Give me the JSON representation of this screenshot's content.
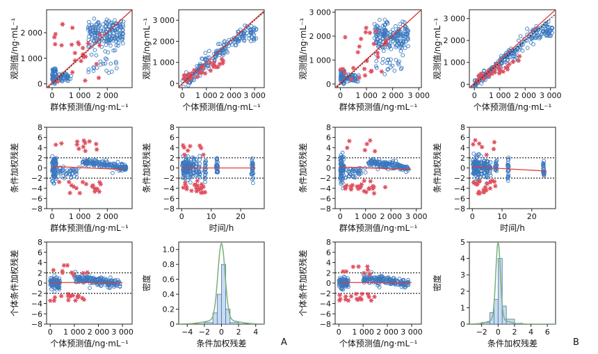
{
  "figure": {
    "panel_labels": [
      "A",
      "B"
    ]
  },
  "colors": {
    "observed_open": "#3a78bf",
    "star": "#e05060",
    "fit_line": "#e23a3a",
    "identity_line": "#222222",
    "hist_fill": "#c7dcf1",
    "density_curve": "#7fb27f"
  },
  "chart_data": [
    {
      "id": "A1",
      "type": "scatter",
      "xlabel": "群体预测值/ng·mL⁻¹",
      "ylabel": "观测值/ng·mL⁻¹",
      "xlim": [
        -200,
        2900
      ],
      "ylim": [
        -150,
        2900
      ],
      "xticks": [
        0,
        1000,
        2000
      ],
      "xticklabels": [
        "0",
        "1 000",
        "2 000"
      ],
      "yticks": [
        0,
        1000,
        2000
      ],
      "yticklabels": [
        "0",
        "1 000",
        "2 000"
      ],
      "identity": true,
      "fitline": [
        [
          -200,
          -150
        ],
        [
          2900,
          2900
        ]
      ],
      "cloud": "pkpred"
    },
    {
      "id": "A2",
      "type": "scatter",
      "xlabel": "个体预测值/ng·mL⁻¹",
      "ylabel": "观测值/ng·mL⁻¹",
      "xlim": [
        -150,
        3400
      ],
      "ylim": [
        -200,
        3500
      ],
      "xticks": [
        0,
        1000,
        2000,
        3000
      ],
      "xticklabels": [
        "0",
        "1 000",
        "2 000",
        "3 000"
      ],
      "yticks": [
        0,
        1000,
        2000,
        3000
      ],
      "yticklabels": [
        "0",
        "1 000",
        "2 000",
        "3 000"
      ],
      "identity": true,
      "fitline": [
        [
          -150,
          -180
        ],
        [
          3400,
          3450
        ]
      ],
      "cloud": "ipred"
    },
    {
      "id": "A3",
      "type": "scatter",
      "xlabel": "群体预测值/ng·mL⁻¹",
      "ylabel": "条件加权残差",
      "xlim": [
        -200,
        2900
      ],
      "ylim": [
        -8,
        8
      ],
      "xticks": [
        0,
        1000,
        2000
      ],
      "xticklabels": [
        "0",
        "1 000",
        "2 000"
      ],
      "yticks": [
        -8,
        -6,
        -4,
        -2,
        0,
        2,
        4,
        6,
        8
      ],
      "yticklabels": [
        "−8",
        "−6",
        "−4",
        "−2",
        "0",
        "2",
        "4",
        "6",
        "8"
      ],
      "reflines": [
        2,
        -2
      ],
      "fitline": [
        [
          0,
          0.3
        ],
        [
          2600,
          -0.3
        ]
      ],
      "cloud": "cwres_pred"
    },
    {
      "id": "A4",
      "type": "scatter",
      "xlabel": "时间/h",
      "ylabel": "条件加权残差",
      "xlim": [
        -1,
        28
      ],
      "ylim": [
        -8,
        8
      ],
      "xticks": [
        0,
        10,
        20
      ],
      "xticklabels": [
        "0",
        "10",
        "20"
      ],
      "yticks": [
        -8,
        -6,
        -4,
        -2,
        0,
        2,
        4,
        6,
        8
      ],
      "yticklabels": [
        "−8",
        "−6",
        "−4",
        "−2",
        "0",
        "2",
        "4",
        "6",
        "8"
      ],
      "reflines": [
        2,
        -2
      ],
      "fitline": [
        [
          0,
          0
        ],
        [
          25,
          0
        ]
      ],
      "cloud": "cwres_time"
    },
    {
      "id": "A5",
      "type": "scatter",
      "xlabel": "个体预测值/ng·mL⁻¹",
      "ylabel": "个体条件加权残差",
      "xlim": [
        -150,
        3400
      ],
      "ylim": [
        -8,
        8
      ],
      "xticks": [
        0,
        1000,
        2000,
        3000
      ],
      "xticklabels": [
        "0",
        "1 000",
        "2 000",
        "3 000"
      ],
      "yticks": [
        -8,
        -6,
        -4,
        -2,
        0,
        2,
        4,
        6,
        8
      ],
      "yticklabels": [
        "−8",
        "−6",
        "−4",
        "−2",
        "0",
        "2",
        "4",
        "6",
        "8"
      ],
      "reflines": [
        2,
        -2
      ],
      "fitline": [
        [
          0,
          0.1
        ],
        [
          3000,
          0.1
        ]
      ],
      "cloud": "iwres"
    },
    {
      "id": "A6",
      "type": "histogram",
      "xlabel": "条件加权残差",
      "ylabel": "密度",
      "xlim": [
        -5,
        5
      ],
      "ylim": [
        0,
        1.1
      ],
      "xticks": [
        -4,
        -2,
        0,
        2,
        4
      ],
      "xticklabels": [
        "−4",
        "−2",
        "0",
        "2",
        "4"
      ],
      "yticks": [
        0,
        0.2,
        0.4,
        0.6,
        0.8,
        1.0
      ],
      "yticklabels": [
        "0",
        "0.2",
        "0.4",
        "0.6",
        "0.8",
        "1.0"
      ],
      "bins": [
        [
          -2,
          -1,
          0.02
        ],
        [
          -1,
          -0.5,
          0.15
        ],
        [
          -0.5,
          0,
          0.4
        ],
        [
          0,
          0.5,
          0.8
        ],
        [
          0.5,
          1,
          0.2
        ],
        [
          1,
          2,
          0.02
        ]
      ],
      "density_peak": 1.02,
      "density_center": 0.0,
      "density_sigma": 0.42
    },
    {
      "id": "B1",
      "type": "scatter",
      "xlabel": "群体预测值/ng·mL⁻¹",
      "ylabel": "观测值/ng·mL⁻¹",
      "xlim": [
        -200,
        3100
      ],
      "ylim": [
        -150,
        3100
      ],
      "xticks": [
        0,
        1000,
        2000,
        3000
      ],
      "xticklabels": [
        "0",
        "1 000",
        "2 000",
        "3 000"
      ],
      "yticks": [
        0,
        1000,
        2000,
        3000
      ],
      "yticklabels": [
        "0",
        "1 000",
        "2 000",
        "3 000"
      ],
      "identity": true,
      "fitline": [
        [
          -200,
          -150
        ],
        [
          3100,
          3100
        ]
      ],
      "cloud": "pkpred"
    },
    {
      "id": "B2",
      "type": "scatter",
      "xlabel": "个体预测值/ng·mL⁻¹",
      "ylabel": "观测值/ng·mL⁻¹",
      "xlim": [
        -200,
        3200
      ],
      "ylim": [
        -150,
        3400
      ],
      "xticks": [
        0,
        1000,
        2000,
        3000
      ],
      "xticklabels": [
        "0",
        "1 000",
        "2 000",
        "3 000"
      ],
      "yticks": [
        0,
        1000,
        2000,
        3000
      ],
      "yticklabels": [
        "0",
        "1 000",
        "2 000",
        "3 000"
      ],
      "identity": true,
      "fitline": [
        [
          -200,
          -150
        ],
        [
          3200,
          3400
        ]
      ],
      "cloud": "ipred"
    },
    {
      "id": "B3",
      "type": "scatter",
      "xlabel": "群体预测值/ng·mL⁻¹",
      "ylabel": "条件加权残差",
      "xlim": [
        -200,
        3200
      ],
      "ylim": [
        -8,
        8
      ],
      "xticks": [
        0,
        1000,
        2000,
        3000
      ],
      "xticklabels": [
        "0",
        "1 000",
        "2 000",
        "3 000"
      ],
      "yticks": [
        -8,
        -6,
        -4,
        -2,
        0,
        2,
        4,
        6,
        8
      ],
      "yticklabels": [
        "−8",
        "−6",
        "−4",
        "−2",
        "0",
        "2",
        "4",
        "6",
        "8"
      ],
      "reflines": [
        2,
        -2
      ],
      "fitline": [
        [
          0,
          0.2
        ],
        [
          2800,
          -0.3
        ]
      ],
      "cloud": "cwres_pred"
    },
    {
      "id": "B4",
      "type": "scatter",
      "xlabel": "时间/h",
      "ylabel": "条件加权残差",
      "xlim": [
        -1,
        28
      ],
      "ylim": [
        -8,
        8
      ],
      "xticks": [
        0,
        10,
        20
      ],
      "xticklabels": [
        "0",
        "10",
        "20"
      ],
      "yticks": [
        -8,
        -6,
        -4,
        -2,
        0,
        2,
        4,
        6,
        8
      ],
      "yticklabels": [
        "−8",
        "−6",
        "−4",
        "−2",
        "0",
        "2",
        "4",
        "6",
        "8"
      ],
      "reflines": [
        2,
        -2
      ],
      "fitline": [
        [
          0,
          0.2
        ],
        [
          25,
          -0.6
        ]
      ],
      "cloud": "cwres_time"
    },
    {
      "id": "B5",
      "type": "scatter",
      "xlabel": "个体预测值/ng·mL⁻¹",
      "ylabel": "个体条件加权残差",
      "xlim": [
        -150,
        3400
      ],
      "ylim": [
        -8,
        8
      ],
      "xticks": [
        0,
        1000,
        2000,
        3000
      ],
      "xticklabels": [
        "0",
        "1 000",
        "2 000",
        "3 000"
      ],
      "yticks": [
        -8,
        -6,
        -4,
        -2,
        0,
        2,
        4,
        6,
        8
      ],
      "yticklabels": [
        "−8",
        "−6",
        "−4",
        "−2",
        "0",
        "2",
        "4",
        "6",
        "8"
      ],
      "reflines": [
        2,
        -2
      ],
      "fitline": [
        [
          0,
          0.1
        ],
        [
          3000,
          0.1
        ]
      ],
      "cloud": "iwres"
    },
    {
      "id": "B6",
      "type": "histogram",
      "xlabel": "条件加权残差",
      "ylabel": "密度",
      "xlim": [
        -3.5,
        7
      ],
      "ylim": [
        0,
        5
      ],
      "xticks": [
        -2,
        0,
        2,
        4,
        6
      ],
      "xticklabels": [
        "−2",
        "0",
        "2",
        "4",
        "6"
      ],
      "yticks": [
        0,
        1,
        2,
        3,
        4,
        5
      ],
      "yticklabels": [
        "0",
        "1",
        "2",
        "3",
        "4",
        "5"
      ],
      "bins": [
        [
          -2,
          -1,
          0.1
        ],
        [
          -1,
          -0.5,
          0.7
        ],
        [
          -0.5,
          0,
          1.5
        ],
        [
          0,
          0.5,
          4.0
        ],
        [
          0.5,
          1,
          1.1
        ],
        [
          1,
          2,
          0.3
        ],
        [
          2,
          3,
          0.05
        ]
      ],
      "density_peak": 4.7,
      "density_center": 0.0,
      "density_sigma": 0.28
    }
  ]
}
